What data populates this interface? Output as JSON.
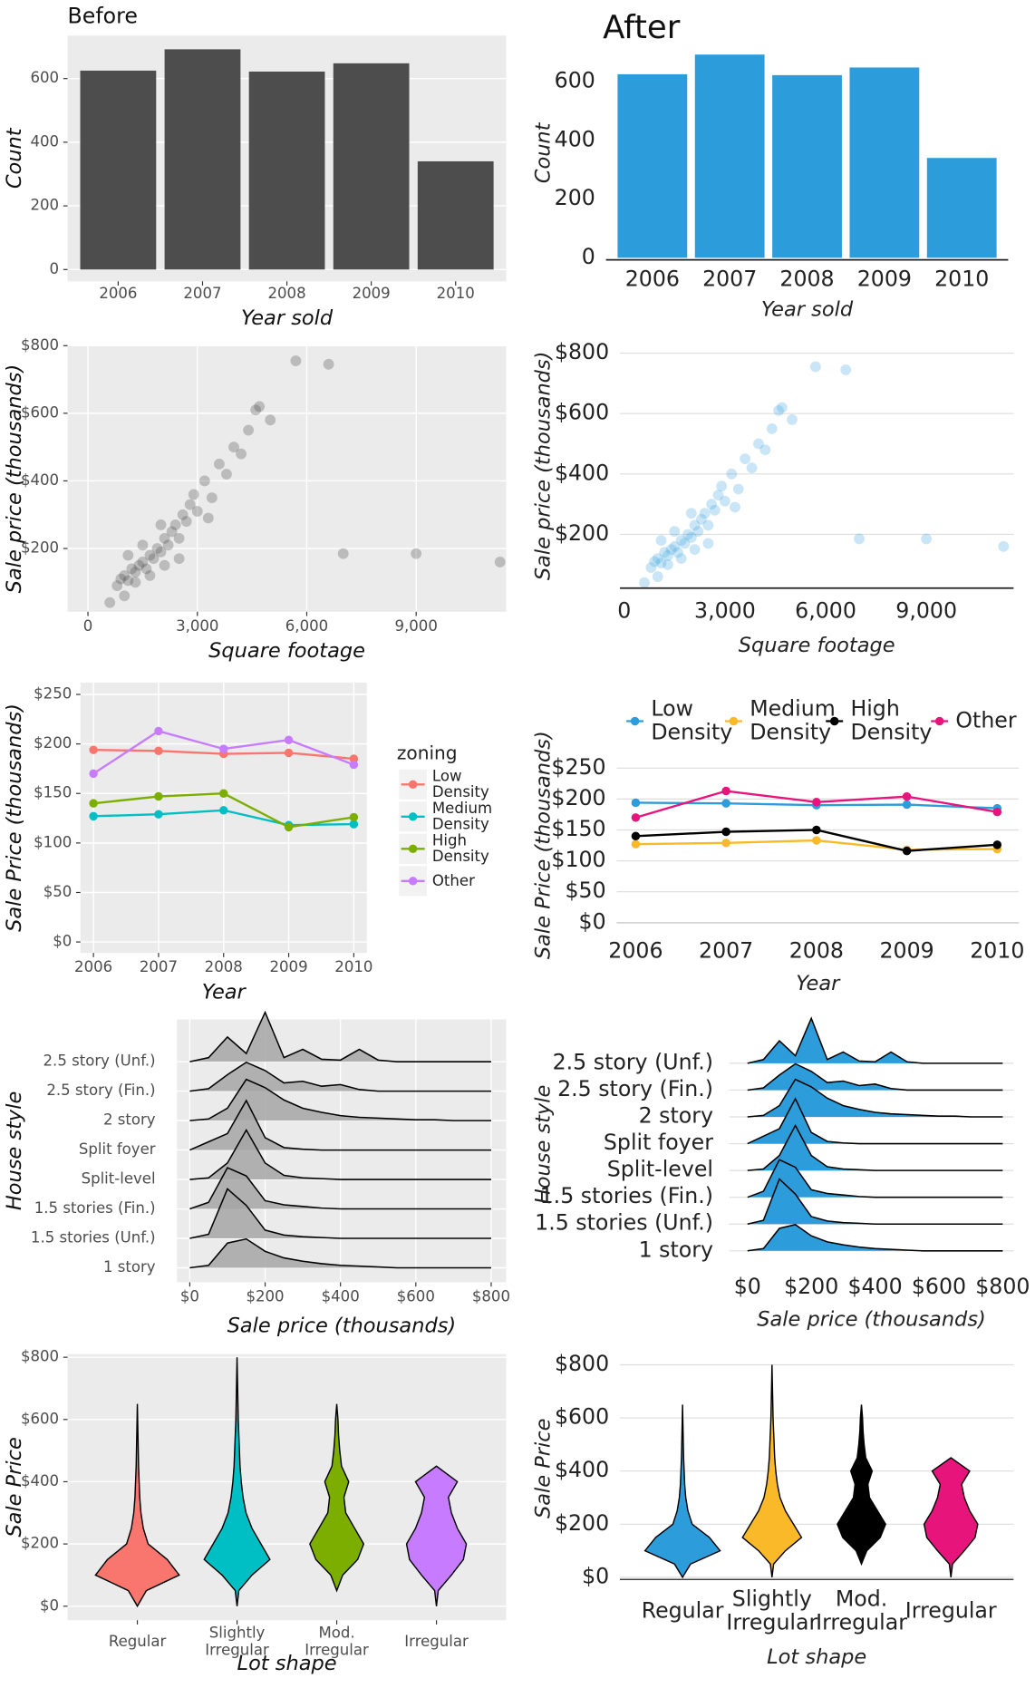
{
  "chart_data": [
    {
      "type": "bar",
      "theme": "gray",
      "title": "Before",
      "x_label": "Year sold",
      "y_label": "Count",
      "categories": [
        "2006",
        "2007",
        "2008",
        "2009",
        "2010"
      ],
      "values": [
        625,
        692,
        622,
        648,
        340
      ],
      "color": "#4d4d4d",
      "ylim": [
        -37,
        735
      ],
      "yticks": [
        0,
        200,
        400,
        600
      ],
      "grid": true
    },
    {
      "type": "bar",
      "theme": "minimal",
      "title": "After",
      "x_label": "Year sold",
      "y_label": "Count",
      "categories": [
        "2006",
        "2007",
        "2008",
        "2009",
        "2010"
      ],
      "values": [
        625,
        692,
        622,
        648,
        340
      ],
      "color": "#2d9cdb",
      "ylim": [
        -7,
        720
      ],
      "yticks": [
        0,
        200,
        400,
        600
      ],
      "grid": false
    },
    {
      "type": "scatter",
      "theme": "gray",
      "x_label": "Square footage",
      "y_label": "Sale price (thousands)",
      "color": "#4d4d4d",
      "point_alpha": 0.3,
      "grid": true,
      "x": [
        800,
        900,
        1000,
        1100,
        1200,
        1300,
        1400,
        1500,
        1600,
        1700,
        1800,
        1900,
        2000,
        2100,
        2200,
        2300,
        2400,
        2500,
        2600,
        2700,
        2800,
        2900,
        3000,
        3200,
        3400,
        3600,
        3800,
        4000,
        4200,
        4400,
        4600,
        4700,
        5000,
        5700,
        6600,
        7000,
        9000,
        11300,
        1000,
        600,
        1300,
        1700,
        2100,
        2500,
        3300,
        1500,
        1100,
        2000
      ],
      "y": [
        90,
        110,
        120,
        105,
        140,
        130,
        150,
        160,
        140,
        180,
        170,
        200,
        190,
        230,
        210,
        250,
        270,
        230,
        300,
        280,
        330,
        360,
        310,
        400,
        350,
        450,
        420,
        500,
        480,
        550,
        610,
        620,
        580,
        755,
        745,
        185,
        185,
        160,
        60,
        40,
        100,
        120,
        150,
        170,
        290,
        210,
        180,
        270
      ],
      "xlim": [
        -559,
        11470
      ],
      "ylim": [
        13,
        800
      ],
      "xticks": [
        0,
        {
          "value": 3000,
          "label": "3,000"
        },
        {
          "value": 6000,
          "label": "6,000"
        },
        {
          "value": 9000,
          "label": "9,000"
        }
      ],
      "yticks": [
        {
          "value": 200,
          "label": "$200"
        },
        {
          "value": 400,
          "label": "$400"
        },
        {
          "value": 600,
          "label": "$600"
        },
        {
          "value": 800,
          "label": "$800"
        }
      ]
    },
    {
      "type": "scatter",
      "theme": "minimal",
      "x_label": "Square footage",
      "y_label": "Sale price (thousands)",
      "color": "#2d9cdb",
      "point_alpha": 0.25,
      "grid": true,
      "x": [
        800,
        900,
        1000,
        1100,
        1200,
        1300,
        1400,
        1500,
        1600,
        1700,
        1800,
        1900,
        2000,
        2100,
        2200,
        2300,
        2400,
        2500,
        2600,
        2700,
        2800,
        2900,
        3000,
        3200,
        3400,
        3600,
        3800,
        4000,
        4200,
        4400,
        4600,
        4700,
        5000,
        5700,
        6600,
        7000,
        9000,
        11300,
        1000,
        600,
        1300,
        1700,
        2100,
        2500,
        3300,
        1500,
        1100,
        2000
      ],
      "y": [
        90,
        110,
        120,
        105,
        140,
        130,
        150,
        160,
        140,
        180,
        170,
        200,
        190,
        230,
        210,
        250,
        270,
        230,
        300,
        280,
        330,
        360,
        310,
        400,
        350,
        450,
        420,
        500,
        480,
        550,
        610,
        620,
        580,
        755,
        745,
        185,
        185,
        160,
        60,
        40,
        100,
        120,
        150,
        170,
        290,
        210,
        180,
        270
      ],
      "xlim": [
        -128,
        11597
      ],
      "ylim": [
        22,
        832
      ],
      "xticks": [
        0,
        {
          "value": 3000,
          "label": "3,000"
        },
        {
          "value": 6000,
          "label": "6,000"
        },
        {
          "value": 9000,
          "label": "9,000"
        }
      ],
      "yticks": [
        {
          "value": 200,
          "label": "$200"
        },
        {
          "value": 400,
          "label": "$400"
        },
        {
          "value": 600,
          "label": "$600"
        },
        {
          "value": 800,
          "label": "$800"
        }
      ]
    },
    {
      "type": "line",
      "theme": "gray",
      "x_label": "Year",
      "y_label": "Sale Price (thousands)",
      "legend_title": "zoning",
      "legend": "right",
      "grid": true,
      "x": [
        2006,
        2007,
        2008,
        2009,
        2010
      ],
      "xlim": [
        2005.8,
        2010.2
      ],
      "xticks": [
        2006,
        2007,
        2008,
        2009,
        2010
      ],
      "ylim": [
        -11,
        262
      ],
      "yticks": [
        {
          "value": 0,
          "label": "$0"
        },
        {
          "value": 50,
          "label": "$50"
        },
        {
          "value": 100,
          "label": "$100"
        },
        {
          "value": 150,
          "label": "$150"
        },
        {
          "value": 200,
          "label": "$200"
        },
        {
          "value": 250,
          "label": "$250"
        }
      ],
      "series": [
        {
          "name": "Low Density",
          "color": "#f8766d",
          "values": [
            194,
            193,
            190,
            191,
            185
          ]
        },
        {
          "name": "Medium Density",
          "color": "#00bfc4",
          "values": [
            127,
            129,
            133,
            118,
            119
          ]
        },
        {
          "name": "High Density",
          "color": "#7cae00",
          "values": [
            140,
            147,
            150,
            116,
            126
          ]
        },
        {
          "name": "Other",
          "color": "#c77cff",
          "values": [
            170,
            213,
            195,
            204,
            179
          ]
        }
      ]
    },
    {
      "type": "line",
      "theme": "minimal",
      "x_label": "Year",
      "y_label": "Sale Price (thousands)",
      "legend": "top",
      "grid": true,
      "x": [
        2006,
        2007,
        2008,
        2009,
        2010
      ],
      "xlim": [
        2005.79,
        2010.24
      ],
      "xticks": [
        2006,
        2007,
        2008,
        2009,
        2010
      ],
      "ylim": [
        -9,
        260
      ],
      "yticks": [
        {
          "value": 0,
          "label": "$0"
        },
        {
          "value": 50,
          "label": "$50"
        },
        {
          "value": 100,
          "label": "$100"
        },
        {
          "value": 150,
          "label": "$150"
        },
        {
          "value": 200,
          "label": "$200"
        },
        {
          "value": 250,
          "label": "$250"
        }
      ],
      "series": [
        {
          "name": "Low Density",
          "color": "#2d9cdb",
          "values": [
            194,
            193,
            190,
            191,
            185
          ]
        },
        {
          "name": "Medium Density",
          "color": "#f9b928",
          "values": [
            127,
            129,
            133,
            118,
            119
          ]
        },
        {
          "name": "High Density",
          "color": "#000000",
          "values": [
            140,
            147,
            150,
            116,
            126
          ]
        },
        {
          "name": "Other",
          "color": "#e7157b",
          "values": [
            170,
            213,
            195,
            204,
            179
          ]
        }
      ]
    },
    {
      "type": "ridgeline",
      "theme": "gray",
      "x_label": "Sale price (thousands)",
      "y_label": "House style",
      "color": "#a6a6a6",
      "grid": true,
      "categories": [
        "1 story",
        "1.5 stories (Unf.)",
        "1.5 stories (Fin.)",
        "Split-level",
        "Split foyer",
        "2 story",
        "2.5 story (Fin.)",
        "2.5 story (Unf.)"
      ],
      "x": [
        0,
        50,
        100,
        150,
        200,
        250,
        300,
        350,
        400,
        450,
        500,
        550,
        600,
        650,
        700,
        750,
        800
      ],
      "densities": [
        [
          0,
          0.3,
          3,
          3.5,
          2,
          1.2,
          0.8,
          0.5,
          0.3,
          0.2,
          0.1,
          0,
          0,
          0,
          0,
          0,
          0
        ],
        [
          0,
          0.5,
          6,
          4,
          1,
          0.4,
          0.2,
          0.1,
          0,
          0,
          0,
          0,
          0,
          0,
          0,
          0,
          0
        ],
        [
          0,
          0.8,
          5,
          4,
          1,
          0.5,
          0.3,
          0.1,
          0,
          0,
          0,
          0,
          0,
          0,
          0,
          0,
          0
        ],
        [
          0,
          0.2,
          2,
          6,
          2,
          0.5,
          0.2,
          0.1,
          0,
          0,
          0,
          0,
          0,
          0,
          0,
          0,
          0
        ],
        [
          0,
          1,
          2,
          6,
          1.5,
          0.3,
          0.1,
          0,
          0,
          0,
          0,
          0,
          0,
          0,
          0,
          0,
          0
        ],
        [
          0,
          0.2,
          1.5,
          5,
          4,
          2.5,
          1.5,
          1,
          0.6,
          0.4,
          0.3,
          0.2,
          0.1,
          0.1,
          0,
          0,
          0
        ],
        [
          0,
          0.3,
          2,
          3.5,
          2.5,
          1,
          1.2,
          0.6,
          0.8,
          0.2,
          0,
          0,
          0,
          0,
          0,
          0,
          0
        ],
        [
          0,
          0.5,
          3,
          1,
          6,
          0.5,
          1.5,
          0.3,
          0.2,
          1.5,
          0.2,
          0,
          0,
          0,
          0,
          0,
          0
        ]
      ],
      "xlim": [
        -34,
        840
      ],
      "xticks": [
        {
          "value": 0,
          "label": "$0"
        },
        {
          "value": 200,
          "label": "$200"
        },
        {
          "value": 400,
          "label": "$400"
        },
        {
          "value": 600,
          "label": "$600"
        },
        {
          "value": 800,
          "label": "$800"
        }
      ]
    },
    {
      "type": "ridgeline",
      "theme": "minimal",
      "x_label": "Sale price (thousands)",
      "y_label": "House style",
      "color": "#2d9cdb",
      "grid": true,
      "categories": [
        "1 story",
        "1.5 stories (Unf.)",
        "1.5 stories (Fin.)",
        "Split-level",
        "Split foyer",
        "2 story",
        "2.5 story (Fin.)",
        "2.5 story (Unf.)"
      ],
      "x": [
        0,
        50,
        100,
        150,
        200,
        250,
        300,
        350,
        400,
        450,
        500,
        550,
        600,
        650,
        700,
        750,
        800
      ],
      "densities": [
        [
          0,
          0.3,
          3,
          3.5,
          2,
          1.2,
          0.8,
          0.5,
          0.3,
          0.2,
          0.1,
          0,
          0,
          0,
          0,
          0,
          0
        ],
        [
          0,
          0.5,
          6,
          4,
          1,
          0.4,
          0.2,
          0.1,
          0,
          0,
          0,
          0,
          0,
          0,
          0,
          0,
          0
        ],
        [
          0,
          0.8,
          5,
          4,
          1,
          0.5,
          0.3,
          0.1,
          0,
          0,
          0,
          0,
          0,
          0,
          0,
          0,
          0
        ],
        [
          0,
          0.2,
          2,
          6,
          2,
          0.5,
          0.2,
          0.1,
          0,
          0,
          0,
          0,
          0,
          0,
          0,
          0,
          0
        ],
        [
          0,
          1,
          2,
          6,
          1.5,
          0.3,
          0.1,
          0,
          0,
          0,
          0,
          0,
          0,
          0,
          0,
          0,
          0
        ],
        [
          0,
          0.2,
          1.5,
          5,
          4,
          2.5,
          1.5,
          1,
          0.6,
          0.4,
          0.3,
          0.2,
          0.1,
          0.1,
          0,
          0,
          0
        ],
        [
          0,
          0.3,
          2,
          3.5,
          2.5,
          1,
          1.2,
          0.6,
          0.8,
          0.2,
          0,
          0,
          0,
          0,
          0,
          0,
          0
        ],
        [
          0,
          0.5,
          3,
          1,
          6,
          0.5,
          1.5,
          0.3,
          0.2,
          1.5,
          0.2,
          0,
          0,
          0,
          0,
          0,
          0
        ]
      ],
      "xlim": [
        -57,
        834
      ],
      "xticks": [
        {
          "value": 0,
          "label": "$0"
        },
        {
          "value": 200,
          "label": "$200"
        },
        {
          "value": 400,
          "label": "$400"
        },
        {
          "value": 600,
          "label": "$600"
        },
        {
          "value": 800,
          "label": "$800"
        }
      ]
    },
    {
      "type": "violin",
      "theme": "gray",
      "x_label": "Lot shape",
      "y_label": "Sale Price",
      "grid": true,
      "categories": [
        "Regular",
        "Slightly Irregular",
        "Mod. Irregular",
        "Irregular"
      ],
      "colors": [
        "#f8766d",
        "#00bfc4",
        "#7cae00",
        "#c77cff"
      ],
      "y": [
        0,
        50,
        100,
        150,
        200,
        250,
        300,
        350,
        400,
        450,
        500,
        550,
        600,
        650,
        700,
        750,
        800
      ],
      "widths": [
        [
          0,
          0.15,
          0.7,
          0.5,
          0.18,
          0.1,
          0.06,
          0.04,
          0.03,
          0.02,
          0.015,
          0.01,
          0.005,
          0,
          0,
          0,
          0
        ],
        [
          0,
          0.03,
          0.25,
          0.55,
          0.4,
          0.25,
          0.15,
          0.1,
          0.07,
          0.05,
          0.04,
          0.03,
          0.02,
          0.015,
          0.01,
          0.005,
          0
        ],
        [
          0,
          0,
          0.1,
          0.35,
          0.45,
          0.3,
          0.15,
          0.12,
          0.2,
          0.08,
          0.05,
          0.03,
          0.02,
          0,
          0,
          0,
          0
        ],
        [
          0,
          0.03,
          0.25,
          0.45,
          0.5,
          0.35,
          0.25,
          0.2,
          0.35,
          0,
          0,
          0,
          0,
          0,
          0,
          0,
          0
        ]
      ],
      "ylim": [
        -45,
        810
      ],
      "yticks": [
        {
          "value": 0,
          "label": "$0"
        },
        {
          "value": 200,
          "label": "$200"
        },
        {
          "value": 400,
          "label": "$400"
        },
        {
          "value": 600,
          "label": "$600"
        },
        {
          "value": 800,
          "label": "$800"
        }
      ]
    },
    {
      "type": "violin",
      "theme": "minimal",
      "x_label": "Lot shape",
      "y_label": "Sale Price",
      "grid": true,
      "categories": [
        "Regular",
        "Slightly Irregular",
        "Mod. Irregular",
        "Irregular"
      ],
      "colors": [
        "#2d9cdb",
        "#f9b928",
        "#000000",
        "#e7157b"
      ],
      "y": [
        0,
        50,
        100,
        150,
        200,
        250,
        300,
        350,
        400,
        450,
        500,
        550,
        600,
        650,
        700,
        750,
        800
      ],
      "widths": [
        [
          0,
          0.15,
          0.7,
          0.5,
          0.18,
          0.1,
          0.06,
          0.04,
          0.03,
          0.02,
          0.015,
          0.01,
          0.005,
          0,
          0,
          0,
          0
        ],
        [
          0,
          0.03,
          0.25,
          0.55,
          0.4,
          0.25,
          0.15,
          0.1,
          0.07,
          0.05,
          0.04,
          0.03,
          0.02,
          0.015,
          0.01,
          0.005,
          0
        ],
        [
          0,
          0,
          0.1,
          0.35,
          0.45,
          0.3,
          0.15,
          0.12,
          0.2,
          0.08,
          0.05,
          0.03,
          0.02,
          0,
          0,
          0,
          0
        ],
        [
          0,
          0.03,
          0.25,
          0.45,
          0.5,
          0.35,
          0.25,
          0.2,
          0.35,
          0,
          0,
          0,
          0,
          0,
          0,
          0,
          0
        ]
      ],
      "ylim": [
        -8,
        828
      ],
      "yticks": [
        {
          "value": 0,
          "label": "$0"
        },
        {
          "value": 200,
          "label": "$200"
        },
        {
          "value": 400,
          "label": "$400"
        },
        {
          "value": 600,
          "label": "$600"
        },
        {
          "value": 800,
          "label": "$800"
        }
      ]
    }
  ]
}
